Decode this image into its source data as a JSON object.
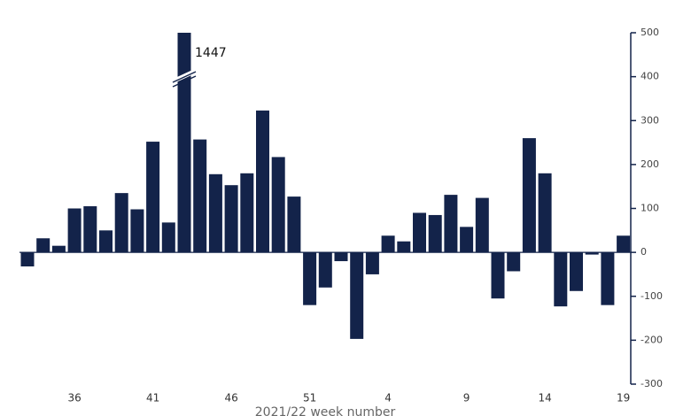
{
  "chart_data": {
    "type": "bar",
    "x_label": "2021/22 week number",
    "categories": [
      null,
      null,
      null,
      "36",
      null,
      null,
      null,
      null,
      "41",
      null,
      null,
      null,
      null,
      "46",
      null,
      null,
      null,
      null,
      "51",
      null,
      null,
      null,
      null,
      "4",
      null,
      null,
      null,
      null,
      "9",
      null,
      null,
      null,
      null,
      "14",
      null,
      null,
      null,
      null,
      "19"
    ],
    "values": [
      -32,
      32,
      15,
      100,
      105,
      50,
      135,
      98,
      252,
      68,
      1447,
      257,
      178,
      153,
      180,
      323,
      217,
      127,
      -120,
      -80,
      -20,
      -197,
      -50,
      38,
      25,
      90,
      85,
      131,
      58,
      124,
      -105,
      -43,
      260,
      180,
      -123,
      -88,
      -5,
      -120,
      38
    ],
    "color": "#13234a",
    "ylim": [
      -300,
      500
    ],
    "yticks": [
      -300,
      -200,
      -100,
      0,
      100,
      200,
      300,
      400,
      500
    ],
    "y_axis_side": "right"
  }
}
